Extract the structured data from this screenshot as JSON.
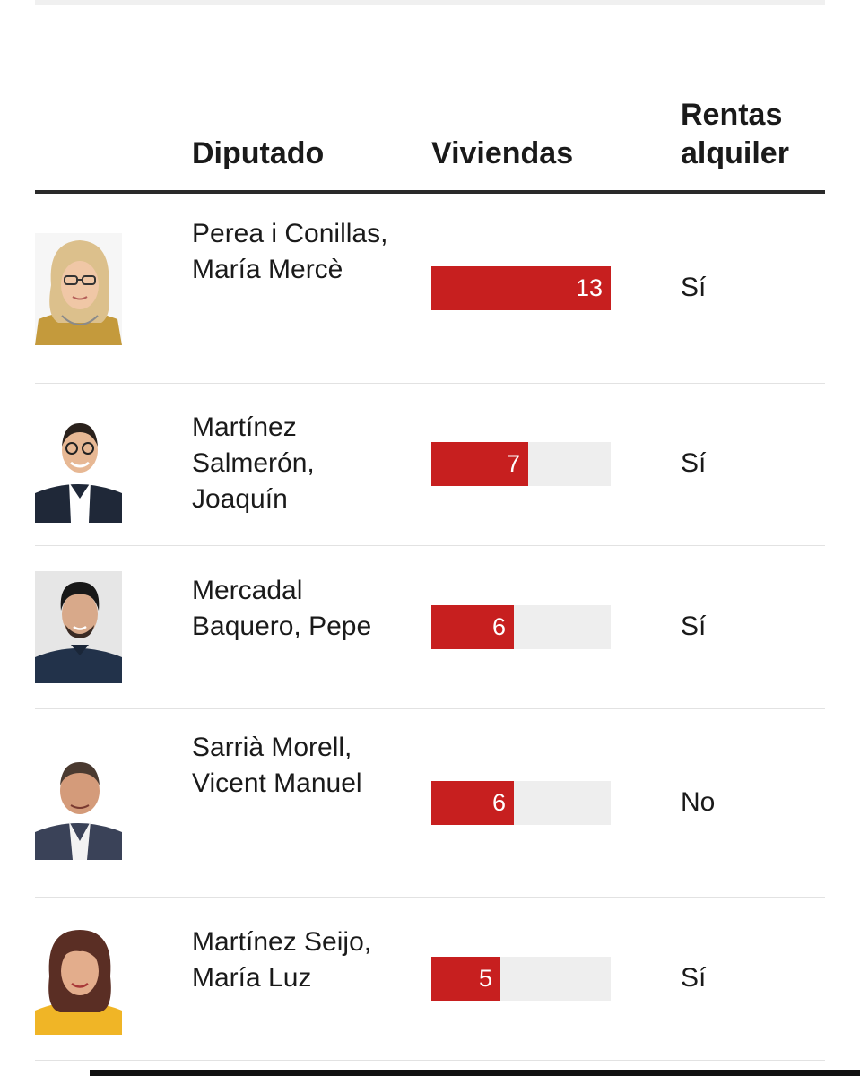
{
  "chart_data": {
    "type": "table",
    "columns": [
      "Diputado",
      "Viviendas",
      "Rentas alquiler"
    ],
    "bar_max": 13,
    "rows": [
      {
        "name": "Perea i Conillas, María Mercè",
        "viviendas": 13,
        "rentas": "Sí"
      },
      {
        "name": "Martínez Salmerón, Joaquín",
        "viviendas": 7,
        "rentas": "Sí"
      },
      {
        "name": "Mercadal Baquero, Pepe",
        "viviendas": 6,
        "rentas": "Sí"
      },
      {
        "name": "Sarrià Morell, Vicent Manuel",
        "viviendas": 6,
        "rentas": "No"
      },
      {
        "name": "Martínez Seijo, María Luz",
        "viviendas": 5,
        "rentas": "Sí"
      }
    ],
    "colors": {
      "bar": "#c71f1f",
      "track": "#eeeeee"
    }
  }
}
